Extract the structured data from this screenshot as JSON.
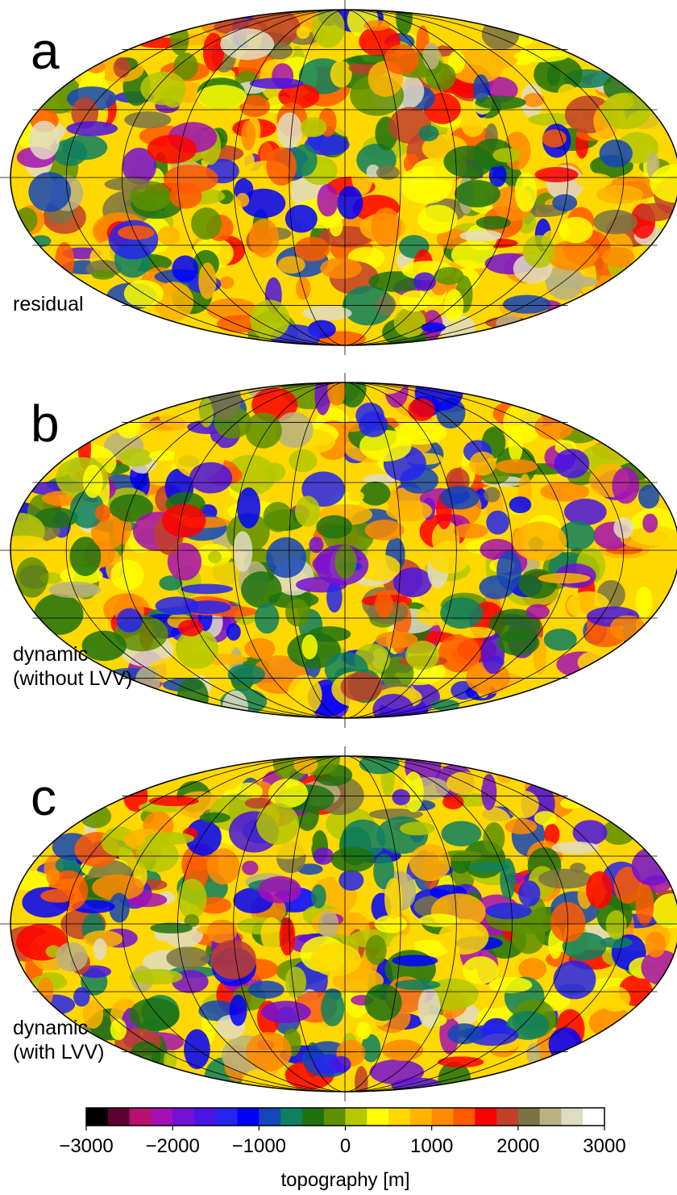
{
  "panels": [
    {
      "letter": "a",
      "label": [
        "residual"
      ]
    },
    {
      "letter": "b",
      "label": [
        "dynamic",
        "(without LVV)"
      ]
    },
    {
      "letter": "c",
      "label": [
        "dynamic",
        "(with LVV)"
      ]
    }
  ],
  "colorbar": {
    "title": "topography [m]",
    "range": [
      -3000,
      3000
    ],
    "ticks": [
      {
        "value": -3000,
        "label": "−3000"
      },
      {
        "value": -2000,
        "label": "−2000"
      },
      {
        "value": -1000,
        "label": "−1000"
      },
      0,
      1000,
      2000,
      3000
    ],
    "colors": [
      "#000000",
      "#5a0032",
      "#b8106e",
      "#a410b4",
      "#7410d4",
      "#4a14e4",
      "#2424f0",
      "#0000ff",
      "#1446b8",
      "#0e8060",
      "#1e7210",
      "#5e9000",
      "#b4c800",
      "#ffff00",
      "#ffd800",
      "#ffb400",
      "#ff8a00",
      "#ff5a00",
      "#ff0000",
      "#c0402a",
      "#7a7444",
      "#b8b282",
      "#e0dcc4",
      "#ffffff"
    ]
  }
}
